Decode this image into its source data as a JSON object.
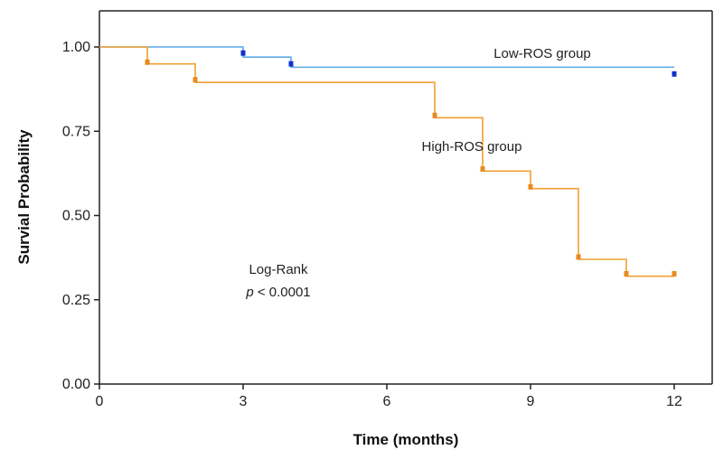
{
  "chart_data": {
    "type": "line",
    "step": true,
    "xlabel": "Time (months)",
    "ylabel": "Survial Probability",
    "xlim": [
      0,
      13
    ],
    "ylim": [
      0,
      1.1
    ],
    "xticks": [
      0,
      3,
      6,
      9,
      12
    ],
    "yticks": [
      0.0,
      0.25,
      0.5,
      0.75,
      1.0
    ],
    "xtick_labels": [
      "0",
      "3",
      "6",
      "9",
      "12"
    ],
    "ytick_labels": [
      "0.00",
      "0.25",
      "0.50",
      "0.75",
      "1.00"
    ],
    "grid": false,
    "series": [
      {
        "name": "Low-ROS group",
        "color": "#5aa9e6",
        "censor_color": "#1030d0",
        "x": [
          0,
          3,
          4,
          12
        ],
        "y": [
          1.0,
          0.97,
          0.94,
          0.94
        ],
        "censored": [
          [
            3,
            0.982
          ],
          [
            4,
            0.95
          ],
          [
            12,
            0.92
          ]
        ]
      },
      {
        "name": "High-ROS group",
        "color": "#f0a030",
        "censor_color": "#e88a20",
        "x": [
          0,
          1,
          2,
          7,
          8,
          9,
          10,
          11,
          12
        ],
        "y": [
          1.0,
          0.95,
          0.895,
          0.79,
          0.632,
          0.58,
          0.37,
          0.32,
          0.32
        ],
        "censored": [
          [
            1,
            0.955
          ],
          [
            2,
            0.903
          ],
          [
            7,
            0.797
          ],
          [
            8,
            0.638
          ],
          [
            9,
            0.585
          ],
          [
            10,
            0.377
          ],
          [
            11,
            0.327
          ],
          [
            12,
            0.327
          ]
        ]
      }
    ],
    "annotations": {
      "low_group_label": "Low-ROS group",
      "high_group_label": "High-ROS group",
      "test_name": "Log-Rank",
      "p_symbol": "p",
      "p_value": " < 0.0001"
    }
  }
}
